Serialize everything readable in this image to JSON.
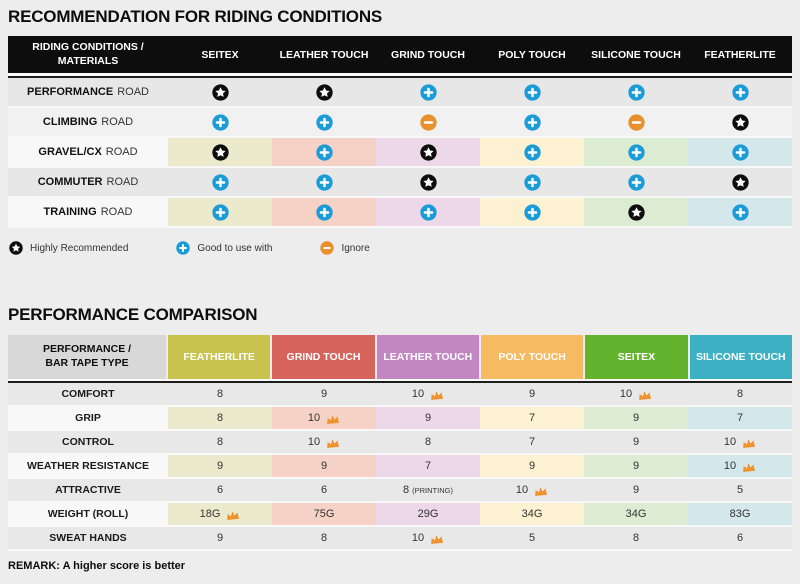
{
  "colors": {
    "page_bg": "#ededed",
    "table1_header_bg": "#0d0d0d",
    "table2_label_header_bg": "#d8d8d8",
    "row_gray": "#e7e7e7",
    "row_light": "#f1f1f1",
    "row_label_light": "#f8f8f8",
    "icon_star_bg": "#0d0d0d",
    "icon_plus_bg": "#1b9bd8",
    "icon_minus_bg": "#e8902d",
    "crown": "#f0922c",
    "cell_tints": [
      "#eceacd",
      "#f6d2c6",
      "#ecd8e8",
      "#fcf2d2",
      "#dcecd2",
      "#d4e7ea"
    ]
  },
  "chart_data": [
    {
      "type": "table",
      "title": "RECOMMENDATION FOR RIDING CONDITIONS",
      "header_label": [
        "RIDING CONDITIONS /",
        "MATERIALS"
      ],
      "columns": [
        "SEITEX",
        "LEATHER TOUCH",
        "GRIND TOUCH",
        "POLY TOUCH",
        "SILICONE TOUCH",
        "FEATHERLITE"
      ],
      "legend_items": [
        {
          "icon": "star",
          "label": "Highly Recommended"
        },
        {
          "icon": "plus",
          "label": "Good to use with"
        },
        {
          "icon": "minus",
          "label": "Ignore"
        }
      ],
      "rows": [
        {
          "label": "PERFORMANCE",
          "label_suffix": "ROAD",
          "variant": "gray",
          "cells": [
            "star",
            "star",
            "plus",
            "plus",
            "plus",
            "plus"
          ]
        },
        {
          "label": "CLIMBING",
          "label_suffix": "ROAD",
          "variant": "light",
          "cells": [
            "plus",
            "plus",
            "minus",
            "plus",
            "minus",
            "star"
          ]
        },
        {
          "label": "GRAVEL/CX",
          "label_suffix": "ROAD",
          "variant": "tinted",
          "cells": [
            "star",
            "plus",
            "star",
            "plus",
            "plus",
            "plus"
          ]
        },
        {
          "label": "COMMUTER",
          "label_suffix": "ROAD",
          "variant": "gray",
          "cells": [
            "plus",
            "plus",
            "star",
            "plus",
            "plus",
            "star"
          ]
        },
        {
          "label": "TRAINING",
          "label_suffix": "ROAD",
          "variant": "tinted",
          "cells": [
            "plus",
            "plus",
            "plus",
            "plus",
            "star",
            "plus"
          ]
        }
      ]
    },
    {
      "type": "table",
      "title": "PERFORMANCE COMPARISON",
      "header_label": [
        "PERFORMANCE /",
        "BAR TAPE TYPE"
      ],
      "columns": [
        {
          "label": "FEATHERLITE",
          "color": "#c8c24f"
        },
        {
          "label": "GRIND TOUCH",
          "color": "#d6645c"
        },
        {
          "label": "LEATHER TOUCH",
          "color": "#c287c2"
        },
        {
          "label": "POLY TOUCH",
          "color": "#f6ba63"
        },
        {
          "label": "SEITEX",
          "color": "#64b32e"
        },
        {
          "label": "SILICONE TOUCH",
          "color": "#3cb1c3"
        }
      ],
      "rows": [
        {
          "label": "COMFORT",
          "variant": "gray",
          "cells": [
            {
              "v": "8"
            },
            {
              "v": "9"
            },
            {
              "v": "10",
              "crown": true
            },
            {
              "v": "9"
            },
            {
              "v": "10",
              "crown": true
            },
            {
              "v": "8"
            }
          ]
        },
        {
          "label": "GRIP",
          "variant": "tinted",
          "cells": [
            {
              "v": "8"
            },
            {
              "v": "10",
              "crown": true
            },
            {
              "v": "9"
            },
            {
              "v": "7"
            },
            {
              "v": "9"
            },
            {
              "v": "7"
            }
          ]
        },
        {
          "label": "CONTROL",
          "variant": "gray",
          "cells": [
            {
              "v": "8"
            },
            {
              "v": "10",
              "crown": true
            },
            {
              "v": "8"
            },
            {
              "v": "7"
            },
            {
              "v": "9"
            },
            {
              "v": "10",
              "crown": true
            }
          ]
        },
        {
          "label": "WEATHER RESISTANCE",
          "variant": "tinted",
          "cells": [
            {
              "v": "9"
            },
            {
              "v": "9"
            },
            {
              "v": "7"
            },
            {
              "v": "9"
            },
            {
              "v": "9"
            },
            {
              "v": "10",
              "crown": true
            }
          ]
        },
        {
          "label": "ATTRACTIVE",
          "variant": "gray",
          "cells": [
            {
              "v": "6"
            },
            {
              "v": "6"
            },
            {
              "v": "8",
              "note": "(PRINTING)"
            },
            {
              "v": "10",
              "crown": true
            },
            {
              "v": "9"
            },
            {
              "v": "5"
            }
          ]
        },
        {
          "label": "WEIGHT (ROLL)",
          "variant": "tinted",
          "cells": [
            {
              "v": "18G",
              "crown": true
            },
            {
              "v": "75G"
            },
            {
              "v": "29G"
            },
            {
              "v": "34G"
            },
            {
              "v": "34G"
            },
            {
              "v": "83G"
            }
          ]
        },
        {
          "label": "SWEAT HANDS",
          "variant": "gray",
          "cells": [
            {
              "v": "9"
            },
            {
              "v": "8"
            },
            {
              "v": "10",
              "crown": true
            },
            {
              "v": "5"
            },
            {
              "v": "8"
            },
            {
              "v": "6"
            }
          ]
        }
      ],
      "note": "REMARK: A higher score is better"
    }
  ]
}
